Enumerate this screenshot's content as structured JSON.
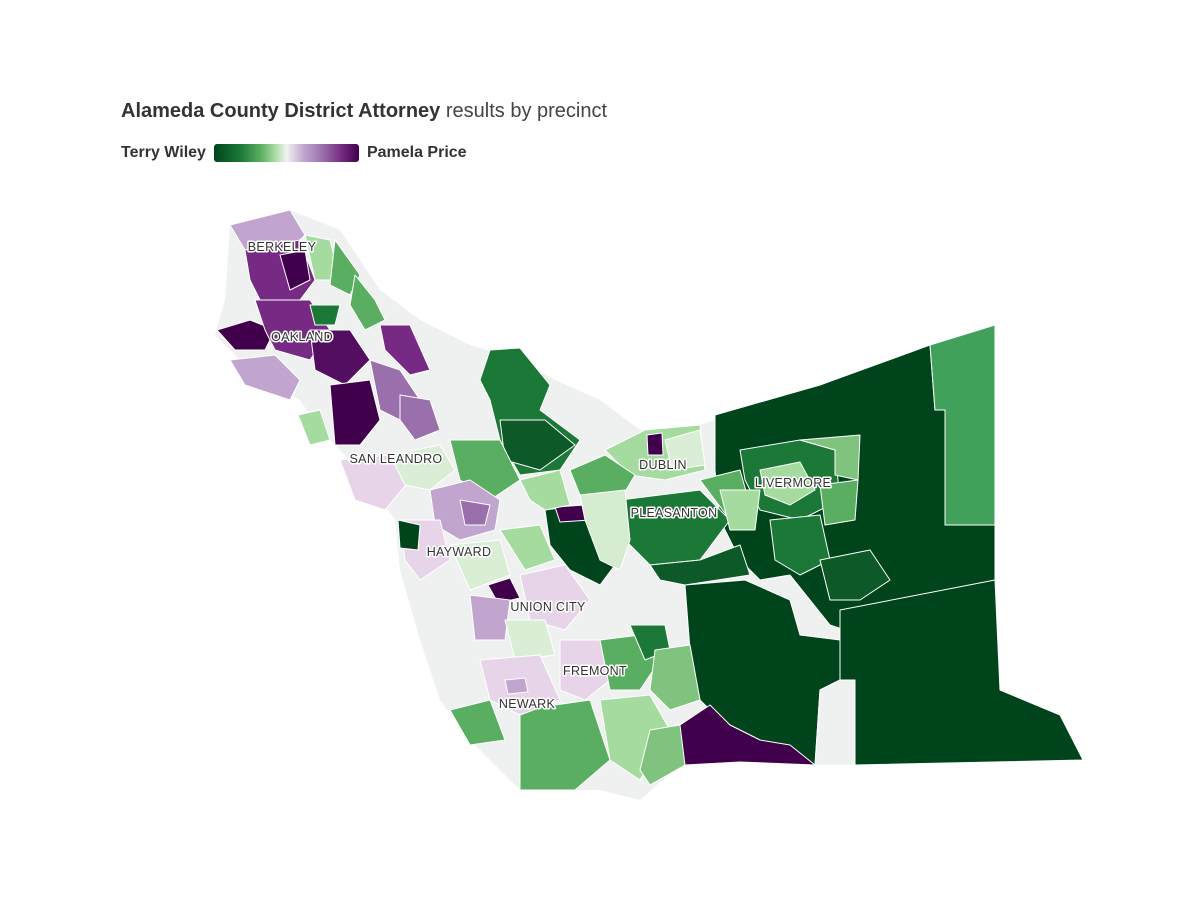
{
  "title": {
    "bold": "Alameda County District Attorney",
    "rest": "results by precinct"
  },
  "legend": {
    "left_label": "Terry Wiley",
    "right_label": "Pamela Price"
  },
  "colors": {
    "wiley_strong": "#00441b",
    "wiley_mid": "#1b7837",
    "wiley_light": "#5aae61",
    "wiley_faint": "#a6dba0",
    "neutral": "#f2f2f2",
    "price_faint": "#e7d4e8",
    "price_light": "#c2a5cf",
    "price_mid": "#762a83",
    "price_strong": "#40004b"
  },
  "cities": [
    "BERKELEY",
    "OAKLAND",
    "SAN LEANDRO",
    "DUBLIN",
    "LIVERMORE",
    "PLEASANTON",
    "HAYWARD",
    "UNION CITY",
    "FREMONT",
    "NEWARK"
  ]
}
